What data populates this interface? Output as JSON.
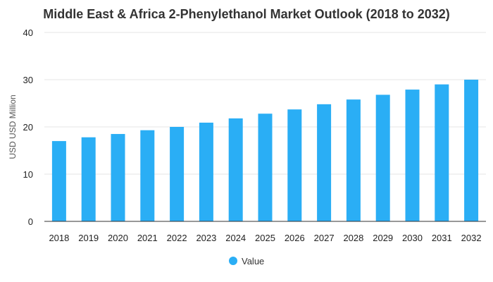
{
  "chart_data": {
    "type": "bar",
    "title": "Middle East & Africa 2-Phenylethanol Market Outlook (2018 to 2032)",
    "xlabel": "",
    "ylabel": "USD USD Million",
    "ylim": [
      0,
      40
    ],
    "yticks": [
      0,
      10,
      20,
      30,
      40
    ],
    "grid": true,
    "legend_position": "bottom",
    "categories": [
      "2018",
      "2019",
      "2020",
      "2021",
      "2022",
      "2023",
      "2024",
      "2025",
      "2026",
      "2027",
      "2028",
      "2029",
      "2030",
      "2031",
      "2032"
    ],
    "series": [
      {
        "name": "Value",
        "color": "#2AAEF5",
        "values": [
          17.0,
          17.8,
          18.5,
          19.3,
          20.0,
          20.9,
          21.8,
          22.8,
          23.7,
          24.8,
          25.8,
          26.8,
          27.9,
          29.0,
          30.0
        ]
      }
    ]
  }
}
